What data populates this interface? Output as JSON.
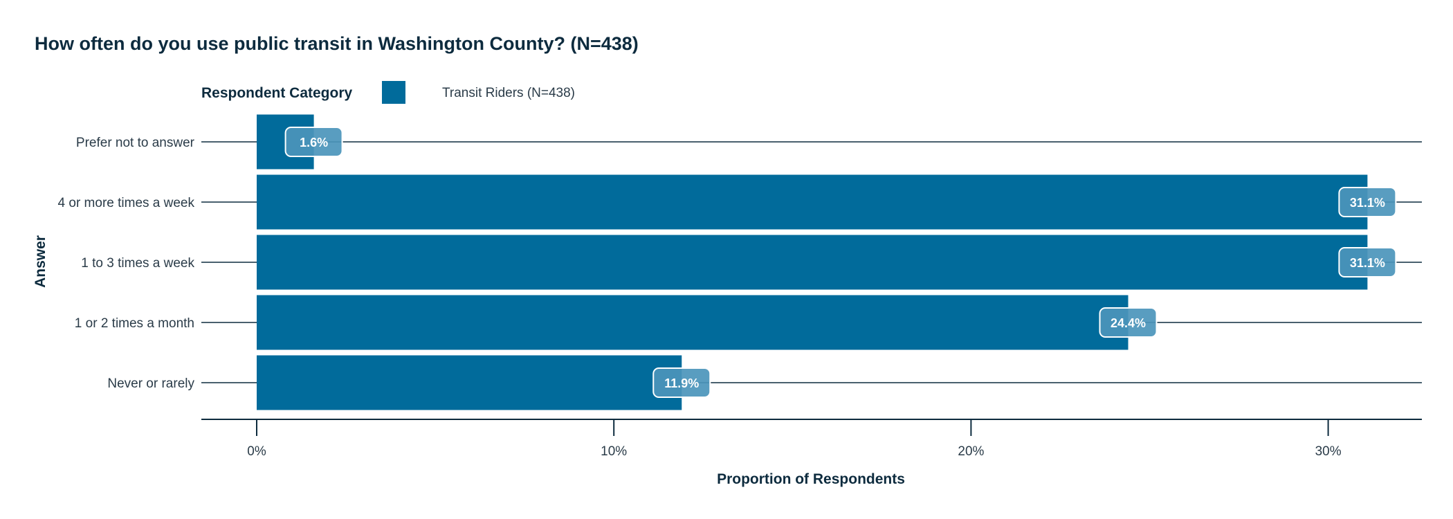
{
  "chart_data": {
    "type": "bar",
    "orientation": "horizontal",
    "title": "How often do you use public transit in Washington County? (N=438)",
    "legend_title": "Respondent Category",
    "legend_placement": "top",
    "categories": [
      "Prefer not to answer",
      "4 or more times a week",
      "1 to 3 times a week",
      "1 or 2 times a month",
      "Never or rarely"
    ],
    "series": [
      {
        "name": "Transit Riders (N=438)",
        "values": [
          1.6,
          31.1,
          31.1,
          24.4,
          11.9
        ],
        "labels": [
          "1.6%",
          "31.1%",
          "31.1%",
          "24.4%",
          "11.9%"
        ],
        "color": "#016b9b"
      }
    ],
    "xlabel": "Proportion of Respondents",
    "ylabel": "Answer",
    "xlim": [
      0,
      32.6
    ],
    "xticks": [
      0,
      10,
      20,
      30
    ],
    "xtick_labels": [
      "0%",
      "10%",
      "20%",
      "30%"
    ],
    "grid": "horizontal category lines",
    "colors": {
      "bar": "#016b9b",
      "label_bg": "#4b95bb",
      "text": "#0d2b3e",
      "line": "#0d2b3e"
    }
  }
}
